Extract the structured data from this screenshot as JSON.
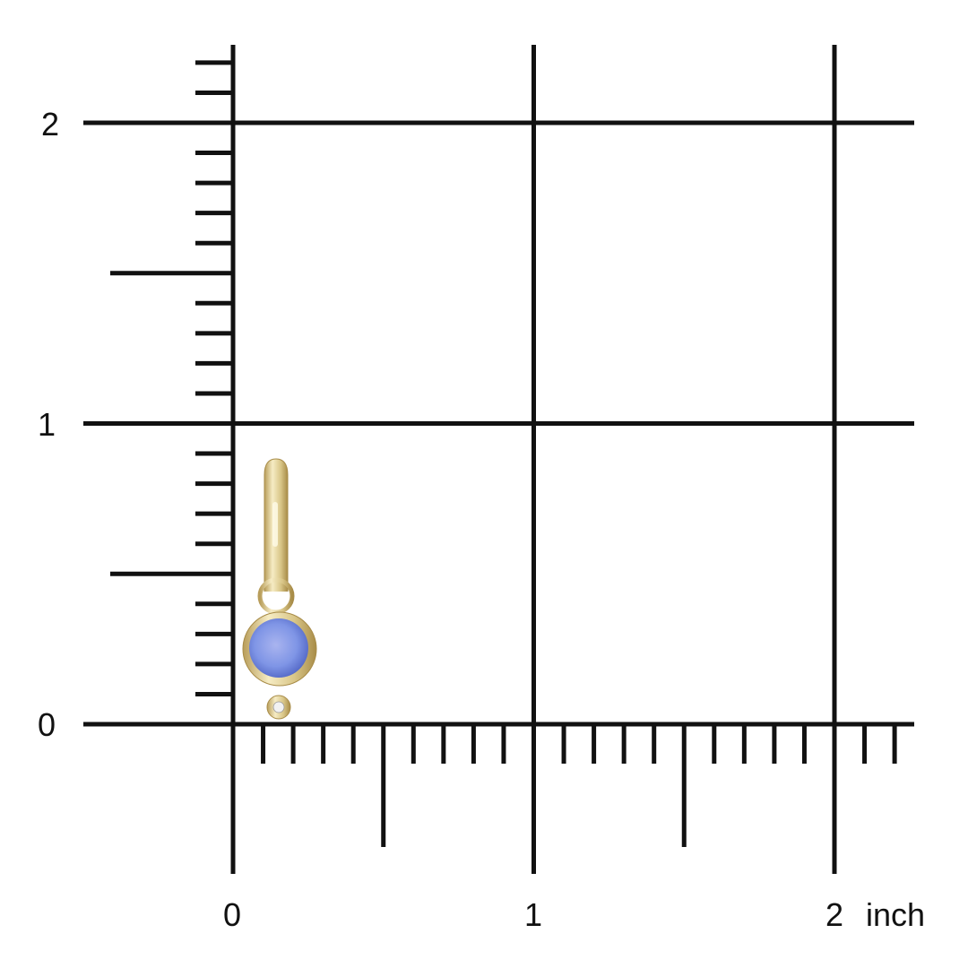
{
  "ruler": {
    "unit": "inch",
    "y_labels": [
      "0",
      "1",
      "2"
    ],
    "x_labels": [
      "0",
      "1",
      "2"
    ],
    "minor_tick_step": 0.1,
    "range_x": [
      0,
      2.2
    ],
    "range_y": [
      0,
      2.2
    ]
  },
  "product": {
    "type": "earring-charm",
    "stone_color": "#7f95e6",
    "metal_color": "#e3d49a",
    "height_inch": 0.9
  }
}
